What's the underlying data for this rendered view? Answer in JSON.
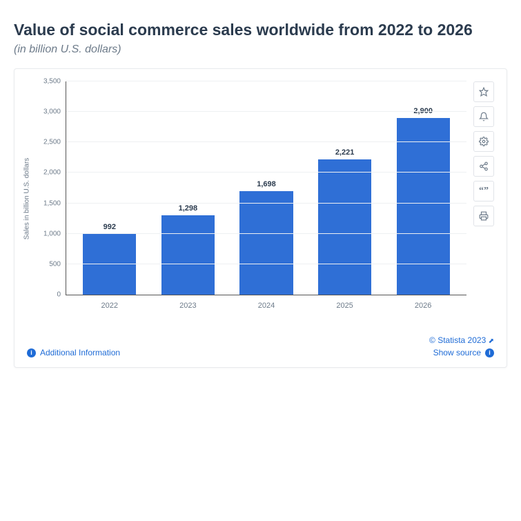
{
  "title": "Value of social commerce sales worldwide from 2022 to 2026",
  "subtitle": "(in billion U.S. dollars)",
  "chart": {
    "type": "bar",
    "ylabel": "Sales in billion U.S. dollars",
    "ylim": [
      0,
      3500
    ],
    "ytick_step": 500,
    "yticks": [
      "0",
      "500",
      "1,000",
      "1,500",
      "2,000",
      "2,500",
      "3,000",
      "3,500"
    ],
    "categories": [
      "2022",
      "2023",
      "2024",
      "2025",
      "2026"
    ],
    "values": [
      992,
      1298,
      1698,
      2221,
      2900
    ],
    "value_labels": [
      "992",
      "1,298",
      "1,698",
      "2,221",
      "2,900"
    ],
    "bar_color": "#2f6fd6",
    "grid_color": "#eef0f2",
    "axis_color": "#555555",
    "background_color": "#ffffff",
    "label_fontsize": 11,
    "ylabel_fontsize": 10,
    "bar_width_pct": 68
  },
  "toolbar": {
    "icons": [
      "star-icon",
      "bell-icon",
      "gear-icon",
      "share-icon",
      "quote-icon",
      "print-icon"
    ]
  },
  "footer": {
    "additional_info": "Additional Information",
    "copyright": "© Statista 2023",
    "show_source": "Show source"
  }
}
